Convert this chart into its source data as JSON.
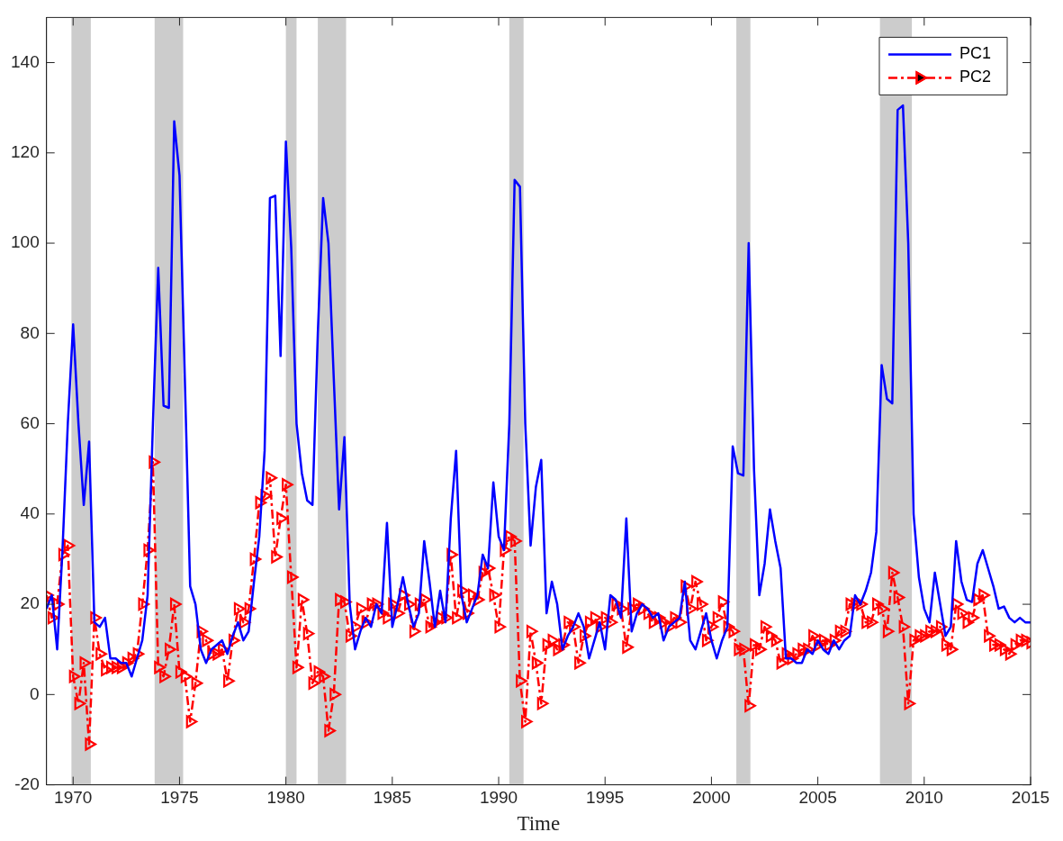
{
  "chart_data": {
    "type": "line",
    "xlabel": "Time",
    "x": [
      1968.75,
      1969,
      1969.25,
      1969.5,
      1969.75,
      1970,
      1970.25,
      1970.5,
      1970.75,
      1971,
      1971.25,
      1971.5,
      1971.75,
      1972,
      1972.25,
      1972.5,
      1972.75,
      1973,
      1973.25,
      1973.5,
      1973.75,
      1974,
      1974.25,
      1974.5,
      1974.75,
      1975,
      1975.25,
      1975.5,
      1975.75,
      1976,
      1976.25,
      1976.5,
      1976.75,
      1977,
      1977.25,
      1977.5,
      1977.75,
      1978,
      1978.25,
      1978.5,
      1978.75,
      1979,
      1979.25,
      1979.5,
      1979.75,
      1980,
      1980.25,
      1980.5,
      1980.75,
      1981,
      1981.25,
      1981.5,
      1981.75,
      1982,
      1982.25,
      1982.5,
      1982.75,
      1983,
      1983.25,
      1983.5,
      1983.75,
      1984,
      1984.25,
      1984.5,
      1984.75,
      1985,
      1985.25,
      1985.5,
      1985.75,
      1986,
      1986.25,
      1986.5,
      1986.75,
      1987,
      1987.25,
      1987.5,
      1987.75,
      1988,
      1988.25,
      1988.5,
      1988.75,
      1989,
      1989.25,
      1989.5,
      1989.75,
      1990,
      1990.25,
      1990.5,
      1990.75,
      1991,
      1991.25,
      1991.5,
      1991.75,
      1992,
      1992.25,
      1992.5,
      1992.75,
      1993,
      1993.25,
      1993.5,
      1993.75,
      1994,
      1994.25,
      1994.5,
      1994.75,
      1995,
      1995.25,
      1995.5,
      1995.75,
      1996,
      1996.25,
      1996.5,
      1996.75,
      1997,
      1997.25,
      1997.5,
      1997.75,
      1998,
      1998.25,
      1998.5,
      1998.75,
      1999,
      1999.25,
      1999.5,
      1999.75,
      2000,
      2000.25,
      2000.5,
      2000.75,
      2001,
      2001.25,
      2001.5,
      2001.75,
      2002,
      2002.25,
      2002.5,
      2002.75,
      2003,
      2003.25,
      2003.5,
      2003.75,
      2004,
      2004.25,
      2004.5,
      2004.75,
      2005,
      2005.25,
      2005.5,
      2005.75,
      2006,
      2006.25,
      2006.5,
      2006.75,
      2007,
      2007.25,
      2007.5,
      2007.75,
      2008,
      2008.25,
      2008.5,
      2008.75,
      2009,
      2009.25,
      2009.5,
      2009.75,
      2010,
      2010.25,
      2010.5,
      2010.75,
      2011,
      2011.25,
      2011.5,
      2011.75,
      2012,
      2012.25,
      2012.5,
      2012.75,
      2013,
      2013.25,
      2013.5,
      2013.75,
      2014,
      2014.25,
      2014.5,
      2014.75,
      2015
    ],
    "series": [
      {
        "name": "PC1",
        "color": "#0000ff",
        "line_style": "solid",
        "marker": "none",
        "values": [
          19,
          22,
          10,
          32,
          60,
          82,
          60,
          42,
          56,
          16,
          15,
          17,
          8,
          8,
          7,
          7,
          4,
          8,
          12,
          22,
          60,
          94.5,
          64,
          63.5,
          127,
          115,
          70,
          24,
          20,
          10,
          7,
          10,
          11,
          12,
          9,
          13,
          16,
          12,
          14,
          25,
          35,
          54,
          110,
          110.5,
          75,
          122.5,
          99,
          60,
          49,
          43,
          42,
          80,
          110,
          100,
          70,
          41,
          57,
          20,
          10,
          14,
          17,
          15,
          20,
          18,
          38,
          15,
          20,
          26,
          20,
          15,
          18,
          34,
          25,
          15,
          23,
          16,
          39,
          54,
          22,
          16,
          19,
          22,
          31,
          28,
          47,
          35,
          32,
          60,
          114,
          112.5,
          60,
          33,
          46,
          52,
          18,
          25,
          20,
          10,
          13,
          15,
          18,
          15,
          8,
          12,
          16,
          10,
          22,
          21,
          17,
          39,
          14,
          18,
          20,
          19,
          17,
          18,
          12,
          15,
          16,
          17,
          25,
          12,
          10,
          14,
          18,
          12,
          8,
          12,
          15,
          55,
          49,
          48.5,
          100,
          50,
          22,
          29,
          41,
          34,
          28,
          8,
          8,
          7,
          7,
          10,
          9,
          12,
          10,
          9,
          12,
          10,
          12,
          13,
          22,
          20,
          23,
          27,
          36,
          73,
          65.5,
          64.5,
          129.5,
          130.5,
          100,
          40,
          26,
          19,
          16,
          27,
          20,
          13,
          15,
          34,
          25,
          21,
          20.5,
          29,
          32,
          28,
          24,
          19,
          19.5,
          17,
          16,
          17,
          16,
          16
        ]
      },
      {
        "name": "PC2",
        "color": "#ff0000",
        "line_style": "dashed",
        "marker": "triangle",
        "values": [
          22,
          17,
          20,
          31,
          33,
          4,
          -2,
          7,
          -11,
          17,
          9,
          5.5,
          6,
          6,
          6,
          7,
          8,
          9,
          20,
          32,
          51.5,
          6,
          4,
          10,
          20,
          5,
          4,
          -6,
          2.5,
          14,
          12,
          9,
          9,
          10,
          3,
          12,
          19,
          16,
          19,
          30,
          42.5,
          44,
          48,
          30.5,
          39,
          46.5,
          26,
          6,
          21,
          13.5,
          2.5,
          5,
          4,
          -8,
          0,
          21,
          20.5,
          13,
          15,
          19,
          16,
          20,
          20,
          18,
          17,
          20,
          18,
          22,
          20,
          14,
          20,
          21,
          15,
          16,
          17,
          17,
          31,
          17,
          23,
          18,
          22,
          21,
          27,
          28,
          22,
          15,
          32,
          35,
          34,
          3,
          -6,
          14,
          7,
          -2,
          11,
          12,
          10,
          11,
          16,
          15,
          7,
          13,
          16,
          17,
          15,
          17,
          16,
          20,
          19,
          10.5,
          19,
          20,
          19,
          18,
          16,
          17,
          16,
          15,
          17,
          16,
          24,
          19,
          25,
          20,
          12,
          15,
          17,
          20.5,
          15,
          14,
          10,
          10,
          -2.5,
          11,
          10,
          15,
          13,
          12,
          7,
          9,
          8,
          9,
          10,
          10,
          13,
          11,
          12,
          11,
          12,
          14,
          14,
          20,
          20,
          20,
          16,
          16,
          20,
          19,
          14,
          27,
          21.5,
          15,
          -2,
          12,
          13,
          13,
          14,
          14,
          15,
          11,
          10,
          20,
          18,
          16,
          17,
          21,
          22,
          13,
          11,
          11,
          10,
          9,
          11,
          12,
          12,
          11.5
        ]
      }
    ],
    "bands": [
      {
        "axis": "x",
        "from": 1969.92,
        "to": 1970.83,
        "color": "#cccccc"
      },
      {
        "axis": "x",
        "from": 1973.83,
        "to": 1975.17,
        "color": "#cccccc"
      },
      {
        "axis": "x",
        "from": 1980,
        "to": 1980.5,
        "color": "#cccccc"
      },
      {
        "axis": "x",
        "from": 1981.5,
        "to": 1982.83,
        "color": "#cccccc"
      },
      {
        "axis": "x",
        "from": 1990.5,
        "to": 1991.17,
        "color": "#cccccc"
      },
      {
        "axis": "x",
        "from": 2001.17,
        "to": 2001.83,
        "color": "#cccccc"
      },
      {
        "axis": "x",
        "from": 2007.92,
        "to": 2009.42,
        "color": "#cccccc"
      }
    ],
    "xlim": [
      1968.75,
      2015
    ],
    "xticks": [
      1970,
      1975,
      1980,
      1985,
      1990,
      1995,
      2000,
      2005,
      2010,
      2015
    ],
    "ylim": [
      -20,
      150
    ],
    "yticks": [
      -20,
      0,
      20,
      40,
      60,
      80,
      100,
      120,
      140
    ],
    "grid": false,
    "legend": "top right"
  }
}
